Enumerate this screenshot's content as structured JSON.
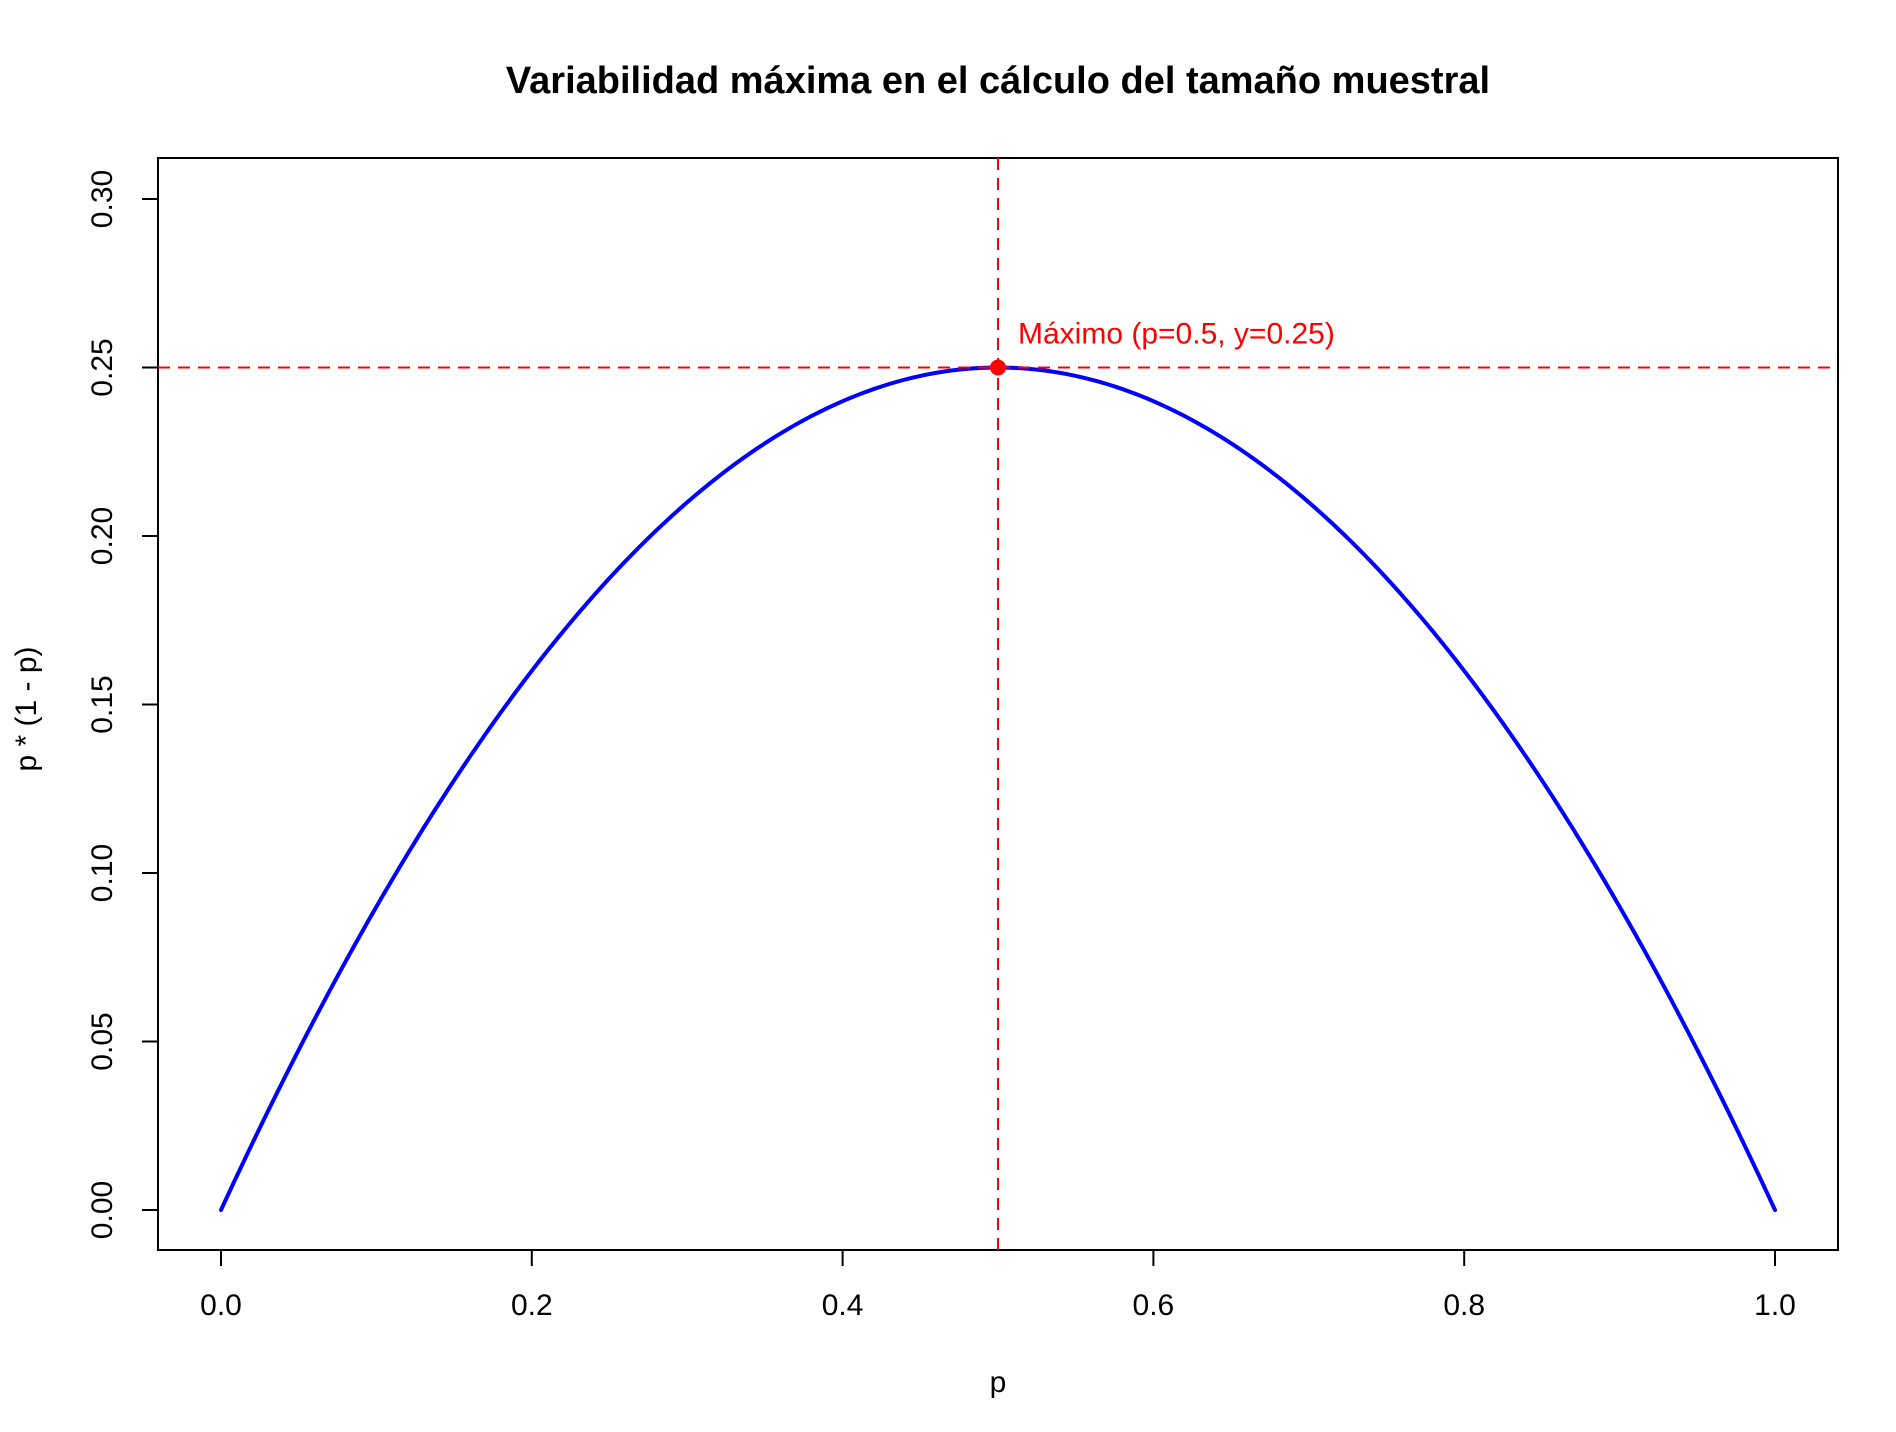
{
  "chart_data": {
    "type": "line",
    "title": "Variabilidad máxima en el cálculo del tamaño muestral",
    "xlabel": "p",
    "ylabel": "p * (1 - p)",
    "xlim": [
      0,
      1
    ],
    "ylim": [
      0,
      0.3
    ],
    "x_ticks": [
      "0.0",
      "0.2",
      "0.4",
      "0.6",
      "0.8",
      "1.0"
    ],
    "y_ticks": [
      "0.00",
      "0.05",
      "0.10",
      "0.15",
      "0.20",
      "0.25",
      "0.30"
    ],
    "grid": false,
    "series": [
      {
        "function": "p * (1 - p)",
        "color": "#0000FF",
        "x": [
          0.0,
          0.05,
          0.1,
          0.15,
          0.2,
          0.25,
          0.3,
          0.35,
          0.4,
          0.45,
          0.5,
          0.55,
          0.6,
          0.65,
          0.7,
          0.75,
          0.8,
          0.85,
          0.9,
          0.95,
          1.0
        ],
        "y": [
          0.0,
          0.0475,
          0.09,
          0.1275,
          0.16,
          0.1875,
          0.21,
          0.2275,
          0.24,
          0.2475,
          0.25,
          0.2475,
          0.24,
          0.2275,
          0.21,
          0.1875,
          0.16,
          0.1275,
          0.09,
          0.0475,
          0.0
        ]
      }
    ],
    "reference_lines": {
      "vertical": {
        "x": 0.5,
        "color": "#FF0000",
        "style": "dashed"
      },
      "horizontal": {
        "y": 0.25,
        "color": "#FF0000",
        "style": "dashed"
      }
    },
    "highlight_point": {
      "x": 0.5,
      "y": 0.25,
      "color": "#FF0000"
    },
    "annotation": {
      "text": "Máximo (p=0.5, y=0.25)",
      "color": "#FF0000"
    }
  }
}
